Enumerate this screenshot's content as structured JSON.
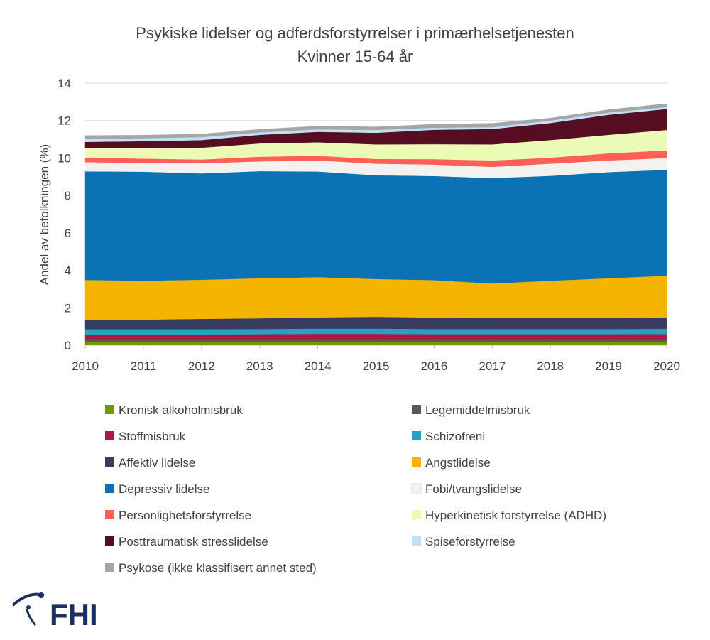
{
  "chart_data": {
    "type": "area",
    "stacked": true,
    "title": "Psykiske lidelser og adferdsforstyrrelser i primærhelsetjenesten",
    "subtitle": "Kvinner 15-64 år",
    "xlabel": "",
    "ylabel": "Andel av befolkningen (%)",
    "ylim": [
      0,
      14
    ],
    "yticks": [
      "0",
      "2",
      "4",
      "6",
      "8",
      "10",
      "12",
      "14"
    ],
    "x": [
      "2010",
      "2011",
      "2012",
      "2013",
      "2014",
      "2015",
      "2016",
      "2017",
      "2018",
      "2019",
      "2020"
    ],
    "grid": true,
    "legend_position": "bottom",
    "series": [
      {
        "name": "Kronisk alkoholmisbruk",
        "color": "#6f9a00",
        "values": [
          0.19,
          0.19,
          0.19,
          0.19,
          0.19,
          0.19,
          0.19,
          0.19,
          0.19,
          0.19,
          0.19
        ]
      },
      {
        "name": "Legemiddelmisbruk",
        "color": "#595959",
        "values": [
          0.14,
          0.14,
          0.14,
          0.14,
          0.14,
          0.14,
          0.14,
          0.14,
          0.14,
          0.14,
          0.14
        ]
      },
      {
        "name": "Stoffmisbruk",
        "color": "#b01842",
        "values": [
          0.25,
          0.25,
          0.25,
          0.26,
          0.28,
          0.28,
          0.26,
          0.26,
          0.26,
          0.26,
          0.27
        ]
      },
      {
        "name": "Schizofreni",
        "color": "#2aa0c0",
        "values": [
          0.28,
          0.28,
          0.28,
          0.28,
          0.28,
          0.28,
          0.28,
          0.28,
          0.28,
          0.28,
          0.28
        ]
      },
      {
        "name": "Affektiv lidelse",
        "color": "#383c60",
        "values": [
          0.51,
          0.51,
          0.55,
          0.57,
          0.6,
          0.63,
          0.61,
          0.58,
          0.58,
          0.58,
          0.61
        ]
      },
      {
        "name": "Angstlidelse",
        "color": "#f5b400",
        "values": [
          2.12,
          2.08,
          2.09,
          2.14,
          2.15,
          2.02,
          2.0,
          1.85,
          2.0,
          2.13,
          2.23
        ]
      },
      {
        "name": "Depressiv lidelse",
        "color": "#0b72b5",
        "values": [
          5.8,
          5.82,
          5.68,
          5.72,
          5.64,
          5.54,
          5.56,
          5.63,
          5.6,
          5.67,
          5.65
        ]
      },
      {
        "name": "Fobi/tvangslidelse",
        "color": "#f4f2f0",
        "values": [
          0.49,
          0.47,
          0.54,
          0.52,
          0.59,
          0.62,
          0.61,
          0.6,
          0.65,
          0.62,
          0.63
        ]
      },
      {
        "name": "Personlighetsforstyrrelse",
        "color": "#ff5f55",
        "values": [
          0.25,
          0.23,
          0.2,
          0.25,
          0.25,
          0.25,
          0.29,
          0.34,
          0.32,
          0.38,
          0.41
        ]
      },
      {
        "name": "Hyperkinetisk forstyrrelse (ADHD)",
        "color": "#ebfbb5",
        "values": [
          0.49,
          0.55,
          0.63,
          0.71,
          0.72,
          0.78,
          0.8,
          0.86,
          0.94,
          0.99,
          1.09
        ]
      },
      {
        "name": "Posttraumatisk stresslidelse",
        "color": "#560d22",
        "values": [
          0.34,
          0.38,
          0.41,
          0.46,
          0.56,
          0.62,
          0.77,
          0.82,
          0.91,
          1.07,
          1.12
        ]
      },
      {
        "name": "Spiseforstyrrelse",
        "color": "#bde3f8",
        "values": [
          0.15,
          0.16,
          0.16,
          0.13,
          0.13,
          0.15,
          0.11,
          0.1,
          0.13,
          0.12,
          0.1
        ]
      },
      {
        "name": "Psykose (ikke klassifisert annet sted)",
        "color": "#a6a6a6",
        "values": [
          0.19,
          0.16,
          0.16,
          0.16,
          0.17,
          0.16,
          0.18,
          0.2,
          0.13,
          0.15,
          0.18
        ]
      }
    ]
  },
  "logo": {
    "text": "FHI",
    "color": "#1c2f5e"
  }
}
